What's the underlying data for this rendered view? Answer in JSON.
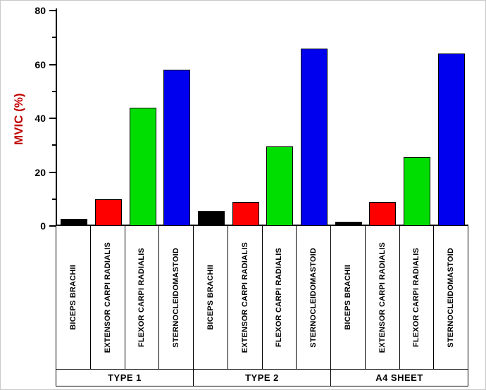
{
  "chart_data": {
    "type": "bar",
    "title": "",
    "xlabel": "",
    "ylabel": "MVIC (%)",
    "ylabel_color": "#c00000",
    "ylim": [
      0,
      80
    ],
    "yticks_major": [
      0,
      20,
      40,
      60,
      80
    ],
    "yticks_minor": [
      10,
      30,
      50,
      70
    ],
    "grid": false,
    "legend": "none",
    "groups": [
      "TYPE 1",
      "TYPE 2",
      "A4 SHEET"
    ],
    "categories": [
      "BICEPS BRACHII",
      "EXTENSOR CARPI RADIALIS",
      "FLEXOR CARPI RADIALIS",
      "STERNOCLEIDOMASTOID"
    ],
    "series": [
      {
        "name": "BICEPS BRACHII",
        "color": "#000000",
        "values": [
          2.5,
          5.5,
          1.5
        ]
      },
      {
        "name": "EXTENSOR CARPI RADIALIS",
        "color": "#ff0000",
        "values": [
          10,
          9,
          9
        ]
      },
      {
        "name": "FLEXOR CARPI RADIALIS",
        "color": "#00dd00",
        "values": [
          44,
          29.5,
          25.5
        ]
      },
      {
        "name": "STERNOCLEIDOMASTOID",
        "color": "#0000ee",
        "values": [
          58,
          66,
          64
        ]
      }
    ]
  }
}
